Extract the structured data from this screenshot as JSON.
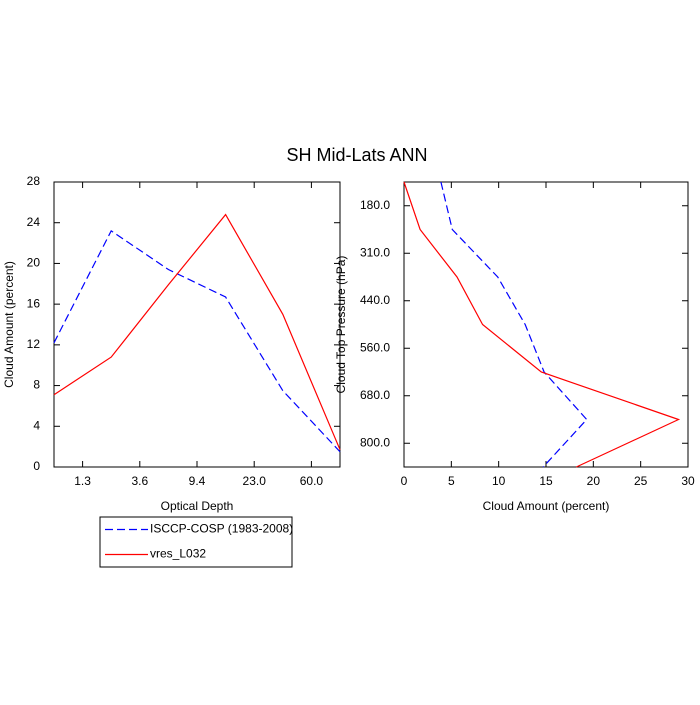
{
  "title": "SH Mid-Lats ANN",
  "legend": {
    "position": "below-left"
  },
  "chart_data": [
    {
      "type": "line",
      "orientation": "vertical",
      "xlabel": "Optical Depth",
      "ylabel": "Cloud Amount (percent)",
      "x": [
        0,
        1,
        2,
        3,
        4,
        5
      ],
      "xlim": [
        0,
        5
      ],
      "xticks": [
        {
          "value": 0.5,
          "label": "1.3"
        },
        {
          "value": 1.5,
          "label": "3.6"
        },
        {
          "value": 2.5,
          "label": "9.4"
        },
        {
          "value": 3.5,
          "label": "23.0"
        },
        {
          "value": 4.5,
          "label": "60.0"
        }
      ],
      "ylim": [
        0,
        28
      ],
      "yticks": [
        0,
        4,
        8,
        12,
        16,
        20,
        24,
        28
      ],
      "series": [
        {
          "name": "ISCCP-COSP (1983-2008)",
          "color": "#0000ff",
          "dash": true,
          "values": [
            12.2,
            23.2,
            19.4,
            16.7,
            7.5,
            1.5
          ]
        },
        {
          "name": "vres_L032",
          "color": "#ff0000",
          "dash": false,
          "values": [
            7.1,
            10.8,
            17.9,
            24.8,
            15.0,
            1.7
          ]
        }
      ]
    },
    {
      "type": "line",
      "orientation": "horizontal",
      "xlabel": "Cloud Amount (percent)",
      "ylabel": "Cloud Top Pressure (hPa)",
      "y": [
        0,
        1,
        2,
        3,
        4,
        5,
        6
      ],
      "ylim": [
        0,
        6
      ],
      "yreverse": true,
      "yticks": [
        {
          "value": 0.5,
          "label": "180.0"
        },
        {
          "value": 1.5,
          "label": "310.0"
        },
        {
          "value": 2.5,
          "label": "440.0"
        },
        {
          "value": 3.5,
          "label": "560.0"
        },
        {
          "value": 4.5,
          "label": "680.0"
        },
        {
          "value": 5.5,
          "label": "800.0"
        }
      ],
      "xlim": [
        0,
        30
      ],
      "xticks": [
        0,
        5,
        10,
        15,
        20,
        25,
        30
      ],
      "series": [
        {
          "color": "#0000ff",
          "dash": true,
          "values": [
            3.9,
            5.1,
            9.9,
            12.8,
            14.8,
            19.3,
            14.7
          ]
        },
        {
          "color": "#ff0000",
          "dash": false,
          "values": [
            0,
            1.7,
            5.6,
            8.3,
            14.5,
            29.0,
            18.2
          ]
        }
      ]
    }
  ]
}
